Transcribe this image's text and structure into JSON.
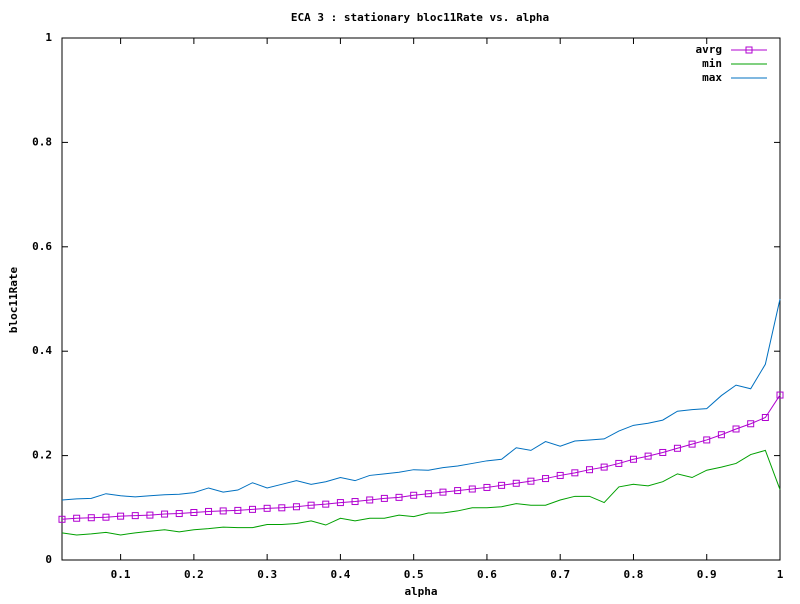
{
  "chart_data": {
    "type": "line",
    "title": "ECA 3 : stationary bloc11Rate vs. alpha",
    "x_label": "alpha",
    "y_label": "bloc11Rate",
    "x": [
      0.02,
      0.04,
      0.06,
      0.08,
      0.1,
      0.12,
      0.14,
      0.16,
      0.18,
      0.2,
      0.22,
      0.24,
      0.26,
      0.28,
      0.3,
      0.32,
      0.34,
      0.36,
      0.38,
      0.4,
      0.42,
      0.44,
      0.46,
      0.48,
      0.5,
      0.52,
      0.54,
      0.56,
      0.58,
      0.6,
      0.62,
      0.64,
      0.66,
      0.68,
      0.7,
      0.72,
      0.74,
      0.76,
      0.78,
      0.8,
      0.82,
      0.84,
      0.86,
      0.88,
      0.9,
      0.92,
      0.94,
      0.96,
      0.98,
      1
    ],
    "series": [
      {
        "name": "avrg",
        "color": "#b000d0",
        "marker": "square",
        "values": [
          0.078,
          0.08,
          0.081,
          0.082,
          0.084,
          0.085,
          0.086,
          0.088,
          0.089,
          0.091,
          0.093,
          0.094,
          0.095,
          0.097,
          0.099,
          0.1,
          0.102,
          0.105,
          0.107,
          0.11,
          0.112,
          0.115,
          0.118,
          0.12,
          0.124,
          0.127,
          0.13,
          0.133,
          0.136,
          0.139,
          0.143,
          0.147,
          0.151,
          0.156,
          0.162,
          0.167,
          0.173,
          0.178,
          0.185,
          0.193,
          0.199,
          0.206,
          0.214,
          0.222,
          0.23,
          0.24,
          0.251,
          0.261,
          0.273,
          0.316
        ]
      },
      {
        "name": "min",
        "color": "#00a000",
        "values": [
          0.052,
          0.048,
          0.05,
          0.053,
          0.048,
          0.052,
          0.055,
          0.058,
          0.054,
          0.058,
          0.06,
          0.063,
          0.062,
          0.062,
          0.068,
          0.068,
          0.07,
          0.075,
          0.067,
          0.08,
          0.075,
          0.08,
          0.08,
          0.086,
          0.083,
          0.09,
          0.09,
          0.094,
          0.1,
          0.1,
          0.102,
          0.108,
          0.105,
          0.105,
          0.115,
          0.122,
          0.122,
          0.11,
          0.14,
          0.145,
          0.142,
          0.15,
          0.165,
          0.158,
          0.172,
          0.178,
          0.185,
          0.202,
          0.21,
          0.135
        ]
      },
      {
        "name": "max",
        "color": "#0070c0",
        "values": [
          0.115,
          0.117,
          0.118,
          0.127,
          0.123,
          0.121,
          0.123,
          0.125,
          0.126,
          0.129,
          0.138,
          0.13,
          0.134,
          0.148,
          0.138,
          0.145,
          0.152,
          0.145,
          0.15,
          0.158,
          0.152,
          0.162,
          0.165,
          0.168,
          0.173,
          0.172,
          0.177,
          0.18,
          0.185,
          0.19,
          0.193,
          0.215,
          0.21,
          0.227,
          0.218,
          0.228,
          0.23,
          0.232,
          0.247,
          0.258,
          0.262,
          0.268,
          0.285,
          0.288,
          0.29,
          0.315,
          0.335,
          0.328,
          0.375,
          0.5
        ]
      }
    ],
    "xlim": [
      0.02,
      1
    ],
    "ylim": [
      0,
      1
    ],
    "xticks": [
      0.1,
      0.2,
      0.3,
      0.4,
      0.5,
      0.6,
      0.7,
      0.8,
      0.9,
      1
    ],
    "yticks": [
      0,
      0.2,
      0.4,
      0.6,
      0.8,
      1
    ],
    "legend": "top-right"
  }
}
